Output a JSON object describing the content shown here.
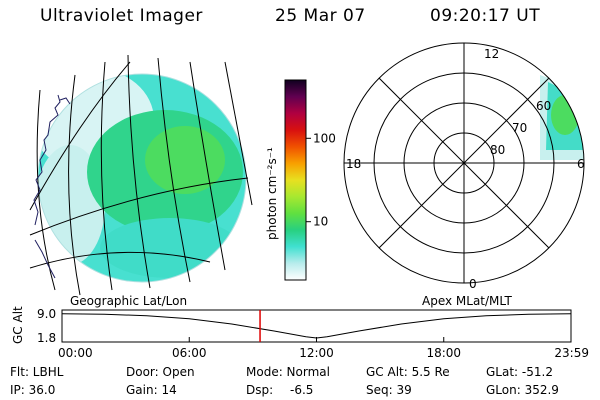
{
  "header": {
    "instrument": "Ultraviolet Imager",
    "date": "25 Mar 07",
    "time": "09:20:17 UT"
  },
  "colors": {
    "foreground": "#000000",
    "marker": "#e00000",
    "coast": "#202060"
  },
  "colorbar": {
    "unit_label": "photon cm⁻²s⁻¹",
    "ticks": [
      "100",
      "10"
    ],
    "tick_values": [
      100,
      10
    ],
    "range": [
      2,
      500
    ],
    "scale": "log",
    "stops": [
      "#ffffff",
      "#b8ecec",
      "#40e0d0",
      "#28d080",
      "#60e040",
      "#a8e830",
      "#e8e020",
      "#f8a000",
      "#f05000",
      "#d81010",
      "#b00040",
      "#600050",
      "#100020"
    ]
  },
  "polar": {
    "mlt_labels": [
      "12",
      "18",
      "6",
      "0"
    ],
    "lat_labels": [
      "60",
      "70",
      "80"
    ],
    "lat_rings": [
      50,
      60,
      70,
      80
    ]
  },
  "panel_labels": {
    "left": "Geographic Lat/Lon",
    "right": "Apex MLat/MLT"
  },
  "altitude_plot": {
    "ylabel": "GC Alt",
    "yticks": [
      "9.0",
      "1.8"
    ],
    "ytick_values": [
      9.0,
      1.8
    ],
    "xticks": [
      "00:00",
      "06:00",
      "12:00",
      "18:00",
      "23:59"
    ],
    "xtick_hours": [
      0,
      6,
      12,
      18,
      24
    ],
    "current_hour": 9.338,
    "orbit_hours": [
      0,
      2,
      4,
      6,
      8,
      10,
      11.5,
      12,
      12.5,
      14,
      16,
      18,
      20,
      22,
      24
    ],
    "orbit_alt": [
      9.05,
      8.9,
      8.5,
      7.6,
      6.0,
      3.9,
      2.2,
      1.8,
      2.2,
      3.9,
      6.0,
      7.6,
      8.5,
      8.9,
      9.05
    ]
  },
  "footer": {
    "flt": "Flt: LBHL",
    "ip": "IP: 36.0",
    "door": "Door: Open",
    "gain": "Gain: 14",
    "mode": "Mode: Normal",
    "dsp_label": "Dsp:",
    "dsp_value": "-6.5",
    "gc_alt": "GC Alt: 5.5 Re",
    "seq": "Seq: 39",
    "glat": "GLat: -51.2",
    "glon": "GLon: 352.9"
  }
}
